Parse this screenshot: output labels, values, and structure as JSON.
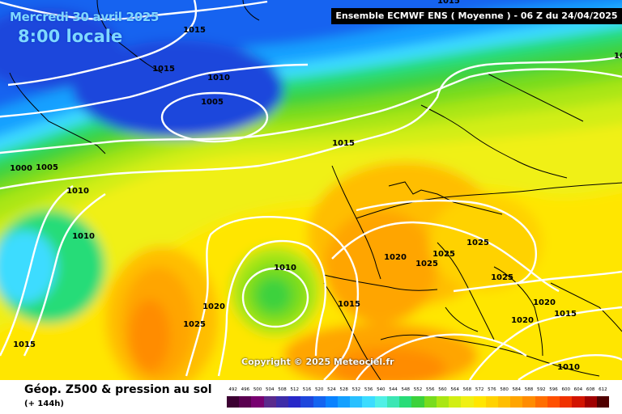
{
  "header": {
    "date": "Mercredi 30 avril 2025",
    "local_time": "8:00 locale",
    "model_run": "Ensemble ECMWF ENS  ( Moyenne )  -  06 Z du 24/04/2025"
  },
  "footer": {
    "product": "Géop. Z500 & pression au sol",
    "forecast_step": "(+ 144h)",
    "copyright": "Copyright © 2025 Meteociel.fr"
  },
  "isobar_labels": [
    "1015",
    "1015",
    "1010",
    "1005",
    "1000",
    "1005",
    "1010",
    "1010",
    "1015",
    "1010",
    "1020",
    "1025",
    "1020",
    "1025",
    "1025",
    "1025",
    "1015",
    "1020",
    "1015",
    "1020",
    "1015",
    "1010",
    "1010",
    "1015"
  ],
  "legend_scale": {
    "labels": [
      "492",
      "496",
      "500",
      "504",
      "508",
      "512",
      "516",
      "520",
      "524",
      "528",
      "532",
      "536",
      "540",
      "544",
      "548",
      "552",
      "556",
      "560",
      "564",
      "568",
      "572",
      "576",
      "580",
      "584",
      "588",
      "592",
      "596",
      "600",
      "604",
      "608",
      "612"
    ],
    "colors": [
      "#3c0032",
      "#5a0050",
      "#780070",
      "#5a2a8c",
      "#3e2ca8",
      "#2828c8",
      "#1e46dc",
      "#1464f0",
      "#0a82ff",
      "#14a0ff",
      "#28c0ff",
      "#3cdcff",
      "#50f0e6",
      "#3ce6b4",
      "#28dc78",
      "#3cd23c",
      "#78dc1e",
      "#aae614",
      "#d2ee14",
      "#f0f014",
      "#ffe600",
      "#ffd200",
      "#ffbe00",
      "#ffa500",
      "#ff8c00",
      "#ff6e00",
      "#ff5000",
      "#f03200",
      "#d21400",
      "#a00000",
      "#500000"
    ]
  }
}
